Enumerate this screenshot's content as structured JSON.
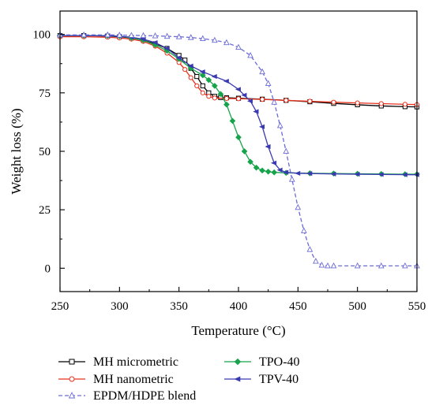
{
  "chart_data": {
    "type": "line",
    "title": "",
    "xlabel": "Temperature (°C)",
    "ylabel": "Weight loss (%)",
    "xlim": [
      250,
      550
    ],
    "ylim": [
      -10,
      110
    ],
    "xticks": [
      250,
      300,
      350,
      400,
      450,
      500,
      550
    ],
    "yticks": [
      0,
      25,
      50,
      75,
      100
    ],
    "xtick_labels": [
      "250",
      "300",
      "350",
      "400",
      "450",
      "500",
      "550"
    ],
    "ytick_labels": [
      "0",
      "25",
      "50",
      "75",
      "100"
    ],
    "grid": false,
    "legend_position": "bottom",
    "series": [
      {
        "name": "MH micrometric",
        "color": "#000000",
        "marker": "square-open",
        "dash": "solid",
        "x": [
          250,
          270,
          290,
          300,
          310,
          320,
          330,
          340,
          350,
          355,
          360,
          365,
          370,
          375,
          380,
          385,
          390,
          400,
          420,
          440,
          460,
          480,
          500,
          520,
          540,
          550
        ],
        "y": [
          99.5,
          99.5,
          99.3,
          99,
          98.5,
          97.5,
          96,
          94,
          91,
          89,
          85.5,
          82,
          78,
          75,
          73.5,
          73,
          72.9,
          72.7,
          72.3,
          71.8,
          71.2,
          70.5,
          69.9,
          69.4,
          69.1,
          69
        ]
      },
      {
        "name": "MH nanometric",
        "color": "#e8301c",
        "marker": "circle-open",
        "dash": "solid",
        "x": [
          250,
          270,
          290,
          300,
          310,
          320,
          330,
          340,
          350,
          355,
          360,
          365,
          370,
          375,
          380,
          390,
          400,
          420,
          440,
          460,
          480,
          500,
          520,
          540,
          550
        ],
        "y": [
          99,
          99,
          98.8,
          98.5,
          98,
          97,
          95,
          92,
          88,
          85,
          81.5,
          78,
          75,
          73.5,
          72.8,
          72.6,
          72.5,
          72.2,
          71.8,
          71.4,
          71,
          70.7,
          70.4,
          70.1,
          70
        ]
      },
      {
        "name": "TPO-40",
        "color": "#16a34a",
        "marker": "diamond",
        "dash": "solid",
        "x": [
          250,
          270,
          290,
          300,
          310,
          320,
          330,
          340,
          350,
          360,
          370,
          375,
          380,
          385,
          390,
          395,
          400,
          405,
          410,
          415,
          420,
          425,
          430,
          440,
          460,
          480,
          500,
          520,
          540,
          550
        ],
        "y": [
          99.5,
          99.5,
          99.4,
          99.2,
          98.5,
          97.5,
          95.5,
          93,
          89.5,
          85.5,
          82.5,
          80.5,
          78,
          74.5,
          70,
          63,
          56,
          50,
          45.5,
          43,
          41.8,
          41.3,
          41,
          40.8,
          40.6,
          40.5,
          40.4,
          40.3,
          40.2,
          40.2
        ]
      },
      {
        "name": "TPV-40",
        "color": "#3a3ab0",
        "marker": "triangle-left",
        "dash": "solid",
        "x": [
          250,
          270,
          290,
          300,
          310,
          320,
          330,
          340,
          350,
          360,
          370,
          380,
          390,
          400,
          405,
          410,
          415,
          420,
          425,
          430,
          435,
          440,
          450,
          460,
          480,
          500,
          520,
          540,
          550
        ],
        "y": [
          99.5,
          99.5,
          99.4,
          99.2,
          98.8,
          98,
          96.5,
          94,
          90,
          86.5,
          84,
          82,
          80,
          76.5,
          74,
          71.5,
          67,
          60.5,
          52,
          45,
          42,
          41,
          40.6,
          40.5,
          40.3,
          40.2,
          40.1,
          40,
          40
        ]
      },
      {
        "name": "EPDM/HDPE blend",
        "color": "#6b6bd6",
        "marker": "triangle-up-open",
        "dash": "dashed",
        "x": [
          250,
          270,
          290,
          300,
          310,
          320,
          330,
          340,
          350,
          360,
          370,
          380,
          390,
          400,
          410,
          420,
          425,
          430,
          435,
          440,
          445,
          450,
          455,
          460,
          465,
          470,
          475,
          480,
          500,
          520,
          540,
          550
        ],
        "y": [
          99.8,
          99.8,
          99.8,
          99.7,
          99.6,
          99.5,
          99.4,
          99.2,
          99,
          98.7,
          98.2,
          97.5,
          96.5,
          94.5,
          91,
          84,
          79,
          71,
          61,
          50,
          38,
          26,
          16,
          8,
          3,
          1.3,
          1,
          1,
          1,
          1,
          1,
          1
        ]
      }
    ]
  }
}
